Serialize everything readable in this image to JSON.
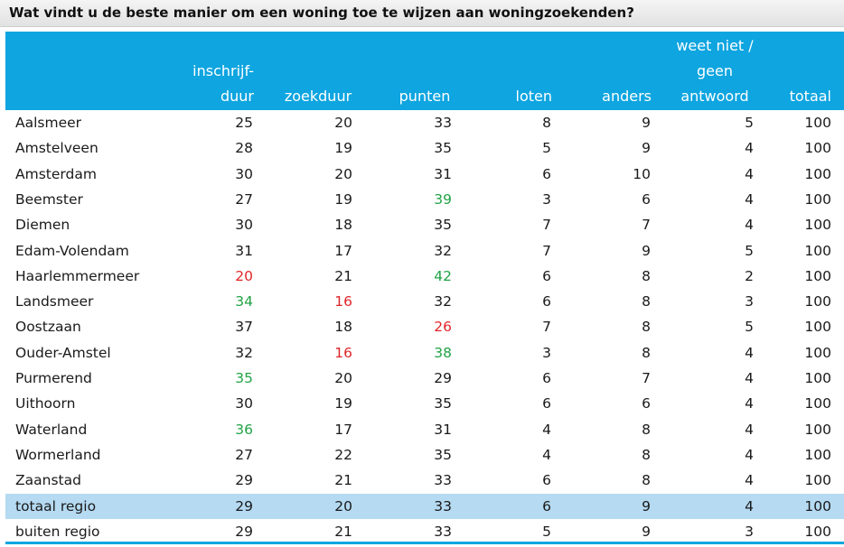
{
  "title": "Wat vindt u de beste manier om een woning toe te wijzen aan woningzoekenden?",
  "colors": {
    "header_bg": "#0ea5e0",
    "highlight_row": "#b5daf2",
    "high": "#22a346",
    "low": "#e0262a",
    "normal": "#1a1a1a"
  },
  "header": {
    "inschrijfduur_line1": "inschrijf-",
    "inschrijfduur_line2": "duur",
    "zoekduur": "zoekduur",
    "punten": "punten",
    "loten": "loten",
    "anders": "anders",
    "weetniet_line1": "weet niet /",
    "weetniet_line2": "geen",
    "weetniet_line3": "antwoord",
    "totaal": "totaal"
  },
  "chart_data": {
    "type": "table",
    "title": "Wat vindt u de beste manier om een woning toe te wijzen aan woningzoekenden?",
    "columns": [
      "inschrijf-duur",
      "zoekduur",
      "punten",
      "loten",
      "anders",
      "weet niet / geen antwoord",
      "totaal"
    ],
    "rows": [
      {
        "name": "Aalsmeer",
        "values": [
          25,
          20,
          33,
          8,
          9,
          5,
          100
        ],
        "flags": [
          "",
          "",
          "",
          "",
          "",
          "",
          ""
        ]
      },
      {
        "name": "Amstelveen",
        "values": [
          28,
          19,
          35,
          5,
          9,
          4,
          100
        ],
        "flags": [
          "",
          "",
          "",
          "",
          "",
          "",
          ""
        ]
      },
      {
        "name": "Amsterdam",
        "values": [
          30,
          20,
          31,
          6,
          10,
          4,
          100
        ],
        "flags": [
          "",
          "",
          "",
          "",
          "",
          "",
          ""
        ]
      },
      {
        "name": "Beemster",
        "values": [
          27,
          19,
          39,
          3,
          6,
          4,
          100
        ],
        "flags": [
          "",
          "",
          "high",
          "",
          "",
          "",
          ""
        ]
      },
      {
        "name": "Diemen",
        "values": [
          30,
          18,
          35,
          7,
          7,
          4,
          100
        ],
        "flags": [
          "",
          "",
          "",
          "",
          "",
          "",
          ""
        ]
      },
      {
        "name": "Edam-Volendam",
        "values": [
          31,
          17,
          32,
          7,
          9,
          5,
          100
        ],
        "flags": [
          "",
          "",
          "",
          "",
          "",
          "",
          ""
        ]
      },
      {
        "name": "Haarlemmermeer",
        "values": [
          20,
          21,
          42,
          6,
          8,
          2,
          100
        ],
        "flags": [
          "low",
          "",
          "high",
          "",
          "",
          "",
          ""
        ]
      },
      {
        "name": "Landsmeer",
        "values": [
          34,
          16,
          32,
          6,
          8,
          3,
          100
        ],
        "flags": [
          "high",
          "low",
          "",
          "",
          "",
          "",
          ""
        ]
      },
      {
        "name": "Oostzaan",
        "values": [
          37,
          18,
          26,
          7,
          8,
          5,
          100
        ],
        "flags": [
          "",
          "",
          "low",
          "",
          "",
          "",
          ""
        ]
      },
      {
        "name": "Ouder-Amstel",
        "values": [
          32,
          16,
          38,
          3,
          8,
          4,
          100
        ],
        "flags": [
          "",
          "low",
          "high",
          "",
          "",
          "",
          ""
        ]
      },
      {
        "name": "Purmerend",
        "values": [
          35,
          20,
          29,
          6,
          7,
          4,
          100
        ],
        "flags": [
          "high",
          "",
          "",
          "",
          "",
          "",
          ""
        ]
      },
      {
        "name": "Uithoorn",
        "values": [
          30,
          19,
          35,
          6,
          6,
          4,
          100
        ],
        "flags": [
          "",
          "",
          "",
          "",
          "",
          "",
          ""
        ]
      },
      {
        "name": "Waterland",
        "values": [
          36,
          17,
          31,
          4,
          8,
          4,
          100
        ],
        "flags": [
          "high",
          "",
          "",
          "",
          "",
          "",
          ""
        ]
      },
      {
        "name": "Wormerland",
        "values": [
          27,
          22,
          35,
          4,
          8,
          4,
          100
        ],
        "flags": [
          "",
          "",
          "",
          "",
          "",
          "",
          ""
        ]
      },
      {
        "name": "Zaanstad",
        "values": [
          29,
          21,
          33,
          6,
          8,
          4,
          100
        ],
        "flags": [
          "",
          "",
          "",
          "",
          "",
          "",
          ""
        ]
      },
      {
        "name": "totaal regio",
        "values": [
          29,
          20,
          33,
          6,
          9,
          4,
          100
        ],
        "flags": [
          "",
          "",
          "",
          "",
          "",
          "",
          ""
        ],
        "highlight": true
      },
      {
        "name": "buiten regio",
        "values": [
          29,
          21,
          33,
          5,
          9,
          3,
          100
        ],
        "flags": [
          "",
          "",
          "",
          "",
          "",
          "",
          ""
        ]
      }
    ]
  }
}
